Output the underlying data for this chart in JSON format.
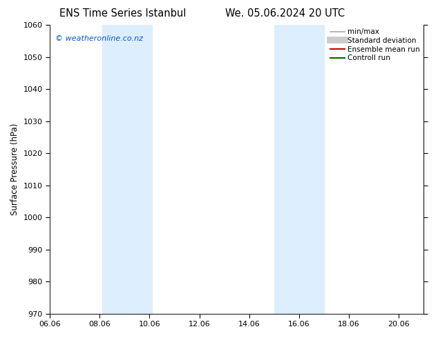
{
  "title_left": "ENS Time Series Istanbul",
  "title_right": "We. 05.06.2024 20 UTC",
  "ylabel": "Surface Pressure (hPa)",
  "ylim": [
    970,
    1060
  ],
  "yticks": [
    970,
    980,
    990,
    1000,
    1010,
    1020,
    1030,
    1040,
    1050,
    1060
  ],
  "xlim": [
    0.0,
    15.0
  ],
  "xtick_labels": [
    "06.06",
    "08.06",
    "10.06",
    "12.06",
    "14.06",
    "16.06",
    "18.06",
    "20.06"
  ],
  "xtick_positions": [
    0,
    2,
    4,
    6,
    8,
    10,
    12,
    14
  ],
  "shaded_bands": [
    {
      "xmin": 2.1,
      "xmax": 3.1
    },
    {
      "xmin": 3.1,
      "xmax": 4.1
    },
    {
      "xmin": 9.0,
      "xmax": 10.0
    },
    {
      "xmin": 10.0,
      "xmax": 11.0
    }
  ],
  "shaded_color": "#ddeeff",
  "watermark_text": "© weatheronline.co.nz",
  "watermark_color": "#0055cc",
  "legend_entries": [
    {
      "label": "min/max",
      "color": "#aaaaaa",
      "lw": 1.2,
      "style": "line"
    },
    {
      "label": "Standard deviation",
      "color": "#cccccc",
      "lw": 7,
      "style": "line"
    },
    {
      "label": "Ensemble mean run",
      "color": "#cc0000",
      "lw": 1.5,
      "style": "line"
    },
    {
      "label": "Controll run",
      "color": "#006600",
      "lw": 1.5,
      "style": "line"
    }
  ],
  "bg_color": "#ffffff",
  "title_fontsize": 10.5,
  "tick_fontsize": 8,
  "ylabel_fontsize": 8.5,
  "watermark_fontsize": 8,
  "legend_fontsize": 7.5
}
